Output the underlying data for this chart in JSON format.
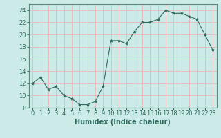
{
  "x": [
    0,
    1,
    2,
    3,
    4,
    5,
    6,
    7,
    8,
    9,
    10,
    11,
    12,
    13,
    14,
    15,
    16,
    17,
    18,
    19,
    20,
    21,
    22,
    23
  ],
  "y": [
    12,
    13,
    11,
    11.5,
    10,
    9.5,
    8.5,
    8.5,
    9,
    11.5,
    19,
    19,
    18.5,
    20.5,
    22,
    22,
    22.5,
    24,
    23.5,
    23.5,
    23,
    22.5,
    20,
    17.5
  ],
  "line_color": "#2e6b5e",
  "marker": "*",
  "marker_size": 3,
  "bg_color": "#cceae7",
  "grid_color": "#e8b8b8",
  "xlabel": "Humidex (Indice chaleur)",
  "xlim": [
    -0.5,
    23.5
  ],
  "ylim": [
    8,
    25
  ],
  "yticks": [
    8,
    10,
    12,
    14,
    16,
    18,
    20,
    22,
    24
  ],
  "xticks": [
    0,
    1,
    2,
    3,
    4,
    5,
    6,
    7,
    8,
    9,
    10,
    11,
    12,
    13,
    14,
    15,
    16,
    17,
    18,
    19,
    20,
    21,
    22,
    23
  ],
  "label_fontsize": 7,
  "tick_fontsize": 6,
  "spine_color": "#5a8a80",
  "tick_color": "#2e6b5e"
}
